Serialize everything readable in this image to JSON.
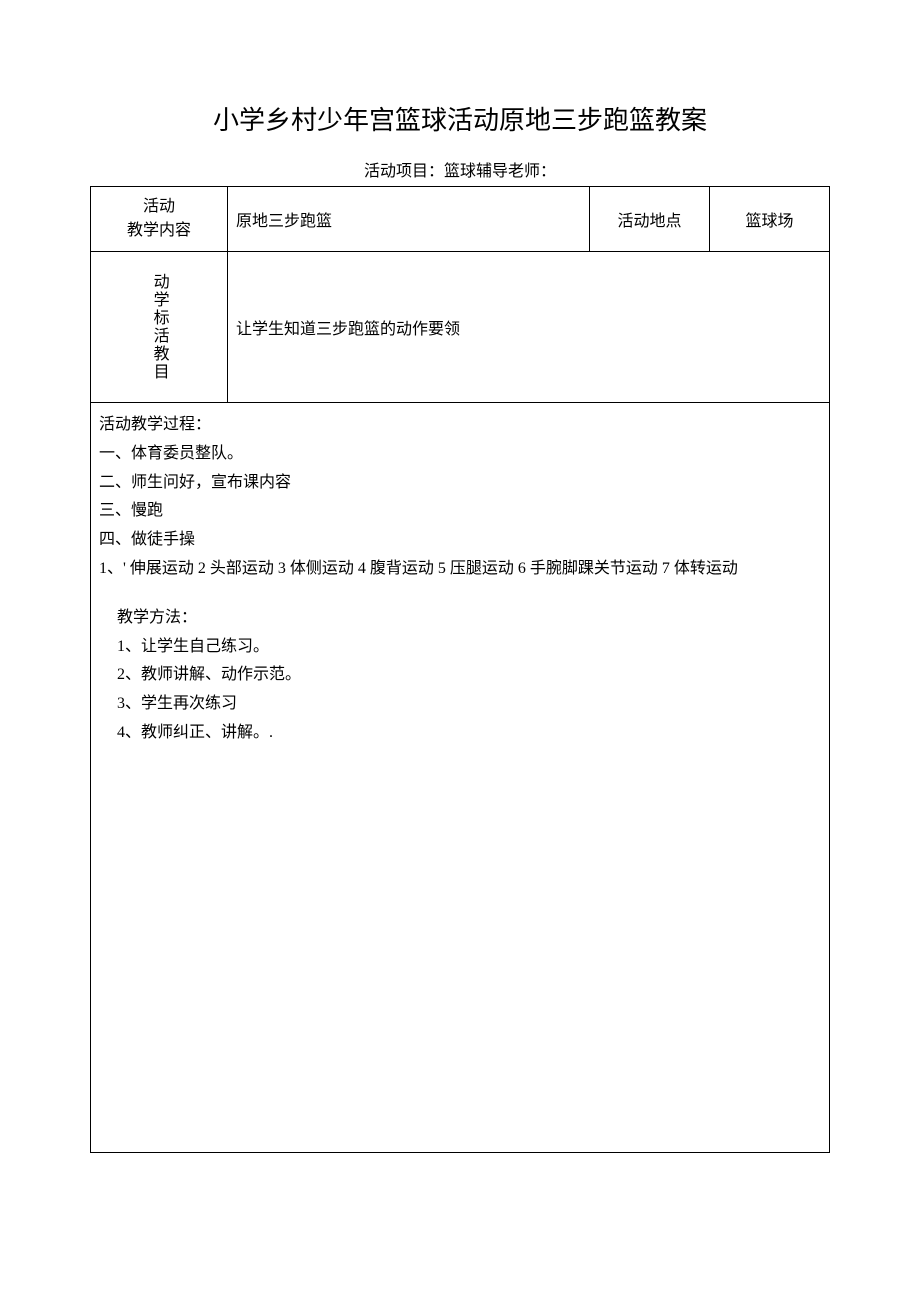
{
  "title": "小学乡村少年宫篮球活动原地三步跑篮教案",
  "subtitle": "活动项目：篮球辅导老师：",
  "row1": {
    "label": "活动\n教学内容",
    "content": "原地三步跑篮",
    "locationLabel": "活动地点",
    "locationValue": "篮球场"
  },
  "row2": {
    "label": "动学标活教目",
    "content": "让学生知道三步跑篮的动作要领"
  },
  "process": {
    "heading": "活动教学过程：",
    "item1": "一、体育委员整队。",
    "item2": "二、师生问好，宣布课内容",
    "item3": "三、慢跑",
    "item4": "四、做徒手操",
    "item5": "1、' 伸展运动 2 头部运动 3 体侧运动 4 腹背运动 5 压腿运动 6 手腕脚踝关节运动 7 体转运动",
    "methodHeading": "教学方法：",
    "method1": "1、让学生自己练习。",
    "method2": "2、教师讲解、动作示范。",
    "method3": "3、学生再次练习",
    "method4": "4、教师纠正、讲解。."
  }
}
